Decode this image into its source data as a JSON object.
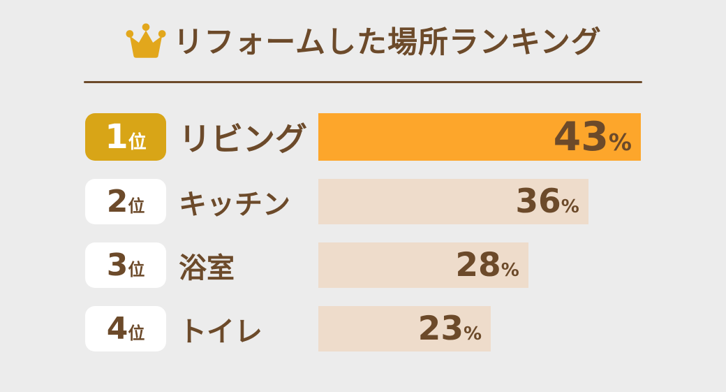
{
  "colors": {
    "page_bg": "#ECECEC",
    "text_brown": "#6C4A2A",
    "crown_gold": "#E2A71C",
    "rank1_badge_bg": "#D8A517",
    "rank1_badge_text": "#FFFFFF",
    "rank1_bar": "#FDA62B",
    "bar_beige": "#EEDCCB",
    "badge_bg": "#FFFFFF"
  },
  "header": {
    "title": "リフォームした場所ランキング"
  },
  "chart_data": {
    "type": "bar",
    "orientation": "horizontal",
    "title": "リフォームした場所ランキング",
    "categories": [
      "リビング",
      "キッチン",
      "浴室",
      "トイレ"
    ],
    "values": [
      43,
      36,
      28,
      23
    ],
    "unit": "%",
    "value_labels": [
      "43%",
      "36%",
      "28%",
      "23%"
    ],
    "legend": "none",
    "grid": false,
    "rows": [
      {
        "rank": "1",
        "rank_suffix": "位",
        "label": "リビング",
        "value": "43",
        "unit": "%",
        "highlighted": true
      },
      {
        "rank": "2",
        "rank_suffix": "位",
        "label": "キッチン",
        "value": "36",
        "unit": "%",
        "highlighted": false
      },
      {
        "rank": "3",
        "rank_suffix": "位",
        "label": "浴室",
        "value": "28",
        "unit": "%",
        "highlighted": false
      },
      {
        "rank": "4",
        "rank_suffix": "位",
        "label": "トイレ",
        "value": "23",
        "unit": "%",
        "highlighted": false
      }
    ]
  }
}
